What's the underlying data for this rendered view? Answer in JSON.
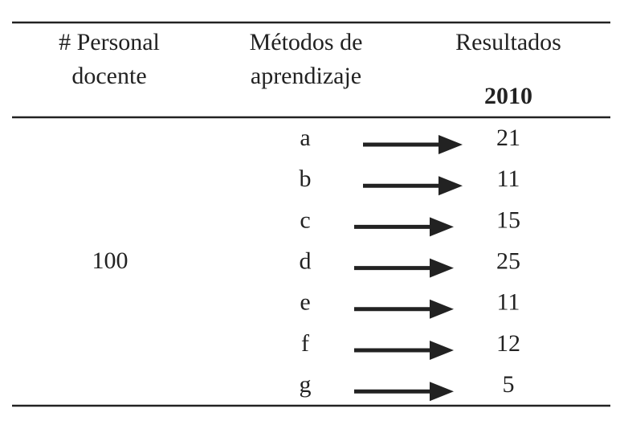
{
  "table": {
    "header": {
      "personal": [
        "# Personal",
        "docente"
      ],
      "methods": [
        "Métodos de",
        "aprendizaje"
      ],
      "results": "Resultados",
      "year": "2010"
    },
    "personal": 100,
    "rows": [
      {
        "method": "a",
        "result": 21
      },
      {
        "method": "b",
        "result": 11
      },
      {
        "method": "c",
        "result": 15
      },
      {
        "method": "d",
        "result": 25
      },
      {
        "method": "e",
        "result": 11
      },
      {
        "method": "f",
        "result": 12
      },
      {
        "method": "g",
        "result": 5
      }
    ]
  }
}
